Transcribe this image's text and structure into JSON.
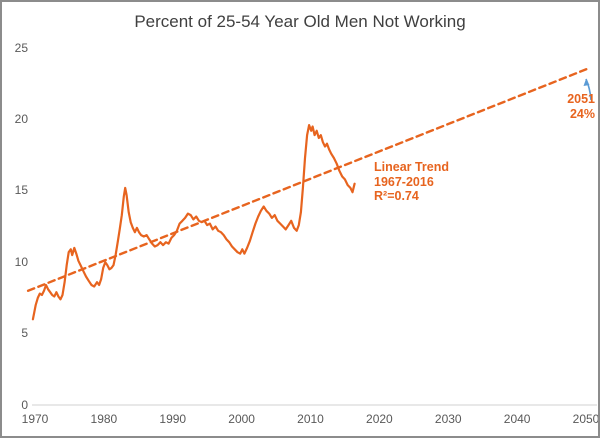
{
  "colors": {
    "accent": "#e7641f",
    "arrow": "#5b9bd5",
    "title_text": "#404040",
    "axis_text": "#595959",
    "axis_line": "#d9d9d9",
    "border": "#8c8c8c"
  },
  "chart_data": {
    "type": "line",
    "title": "Percent of 25-54 Year Old Men Not Working",
    "xlabel": "",
    "ylabel": "",
    "legend": "none",
    "grid": false,
    "x_axis": {
      "ticks": [
        1970,
        1980,
        1990,
        2000,
        2010,
        2020,
        2030,
        2040,
        2050
      ],
      "range": [
        1969,
        2051
      ]
    },
    "y_axis": {
      "ticks": [
        0,
        5,
        10,
        15,
        20,
        25
      ],
      "range": [
        0,
        25
      ]
    },
    "series": [
      {
        "name": "percent-not-working",
        "label": "Percent of 25-54 year old men not working (1970-2016)",
        "style": "solid",
        "points": [
          [
            1969.7,
            6.0
          ],
          [
            1969.9,
            6.5
          ],
          [
            1970.1,
            7.0
          ],
          [
            1970.4,
            7.5
          ],
          [
            1970.7,
            7.8
          ],
          [
            1971.0,
            7.7
          ],
          [
            1971.3,
            8.0
          ],
          [
            1971.6,
            8.4
          ],
          [
            1971.9,
            8.1
          ],
          [
            1972.2,
            7.9
          ],
          [
            1972.5,
            7.7
          ],
          [
            1972.8,
            7.6
          ],
          [
            1973.1,
            7.9
          ],
          [
            1973.4,
            7.6
          ],
          [
            1973.7,
            7.4
          ],
          [
            1974.0,
            7.7
          ],
          [
            1974.3,
            8.6
          ],
          [
            1974.6,
            9.8
          ],
          [
            1974.9,
            10.7
          ],
          [
            1975.2,
            10.9
          ],
          [
            1975.4,
            10.5
          ],
          [
            1975.7,
            11.0
          ],
          [
            1976.0,
            10.6
          ],
          [
            1976.3,
            10.1
          ],
          [
            1976.6,
            9.8
          ],
          [
            1977.0,
            9.4
          ],
          [
            1977.4,
            9.0
          ],
          [
            1977.8,
            8.7
          ],
          [
            1978.2,
            8.4
          ],
          [
            1978.6,
            8.3
          ],
          [
            1979.0,
            8.6
          ],
          [
            1979.3,
            8.4
          ],
          [
            1979.6,
            8.8
          ],
          [
            1979.9,
            9.6
          ],
          [
            1980.2,
            10.0
          ],
          [
            1980.5,
            9.8
          ],
          [
            1980.8,
            9.5
          ],
          [
            1981.1,
            9.6
          ],
          [
            1981.4,
            9.8
          ],
          [
            1981.7,
            10.5
          ],
          [
            1982.0,
            11.4
          ],
          [
            1982.3,
            12.3
          ],
          [
            1982.6,
            13.3
          ],
          [
            1982.9,
            14.6
          ],
          [
            1983.1,
            15.2
          ],
          [
            1983.3,
            14.7
          ],
          [
            1983.6,
            13.5
          ],
          [
            1983.9,
            12.8
          ],
          [
            1984.2,
            12.4
          ],
          [
            1984.5,
            12.1
          ],
          [
            1984.8,
            12.4
          ],
          [
            1985.1,
            12.1
          ],
          [
            1985.4,
            11.9
          ],
          [
            1985.8,
            11.8
          ],
          [
            1986.2,
            11.9
          ],
          [
            1986.6,
            11.6
          ],
          [
            1987.0,
            11.3
          ],
          [
            1987.4,
            11.1
          ],
          [
            1987.8,
            11.2
          ],
          [
            1988.2,
            11.4
          ],
          [
            1988.6,
            11.2
          ],
          [
            1989.0,
            11.4
          ],
          [
            1989.4,
            11.3
          ],
          [
            1989.8,
            11.7
          ],
          [
            1990.2,
            11.9
          ],
          [
            1990.6,
            12.2
          ],
          [
            1991.0,
            12.7
          ],
          [
            1991.4,
            12.9
          ],
          [
            1991.8,
            13.1
          ],
          [
            1992.2,
            13.4
          ],
          [
            1992.6,
            13.3
          ],
          [
            1993.0,
            13.0
          ],
          [
            1993.4,
            13.2
          ],
          [
            1993.8,
            12.9
          ],
          [
            1994.2,
            12.8
          ],
          [
            1994.6,
            12.9
          ],
          [
            1995.0,
            12.6
          ],
          [
            1995.4,
            12.7
          ],
          [
            1995.8,
            12.3
          ],
          [
            1996.2,
            12.5
          ],
          [
            1996.6,
            12.2
          ],
          [
            1997.0,
            12.1
          ],
          [
            1997.4,
            11.9
          ],
          [
            1997.8,
            11.6
          ],
          [
            1998.2,
            11.4
          ],
          [
            1998.6,
            11.1
          ],
          [
            1999.0,
            10.9
          ],
          [
            1999.4,
            10.7
          ],
          [
            1999.8,
            10.6
          ],
          [
            2000.1,
            10.9
          ],
          [
            2000.4,
            10.6
          ],
          [
            2000.8,
            11.0
          ],
          [
            2001.2,
            11.5
          ],
          [
            2001.6,
            12.1
          ],
          [
            2002.0,
            12.7
          ],
          [
            2002.4,
            13.2
          ],
          [
            2002.8,
            13.6
          ],
          [
            2003.2,
            13.9
          ],
          [
            2003.6,
            13.6
          ],
          [
            2004.0,
            13.4
          ],
          [
            2004.4,
            13.1
          ],
          [
            2004.8,
            13.3
          ],
          [
            2005.2,
            12.9
          ],
          [
            2005.6,
            12.7
          ],
          [
            2006.0,
            12.5
          ],
          [
            2006.4,
            12.3
          ],
          [
            2006.8,
            12.6
          ],
          [
            2007.2,
            12.9
          ],
          [
            2007.6,
            12.4
          ],
          [
            2008.0,
            12.2
          ],
          [
            2008.3,
            12.6
          ],
          [
            2008.6,
            13.5
          ],
          [
            2008.9,
            15.2
          ],
          [
            2009.2,
            17.3
          ],
          [
            2009.5,
            18.9
          ],
          [
            2009.8,
            19.6
          ],
          [
            2010.1,
            19.2
          ],
          [
            2010.3,
            19.5
          ],
          [
            2010.6,
            18.9
          ],
          [
            2010.9,
            19.2
          ],
          [
            2011.2,
            18.7
          ],
          [
            2011.5,
            18.9
          ],
          [
            2011.8,
            18.4
          ],
          [
            2012.1,
            18.1
          ],
          [
            2012.4,
            18.3
          ],
          [
            2012.7,
            17.9
          ],
          [
            2013.0,
            17.6
          ],
          [
            2013.4,
            17.3
          ],
          [
            2013.8,
            16.9
          ],
          [
            2014.2,
            16.4
          ],
          [
            2014.6,
            16.0
          ],
          [
            2015.0,
            15.8
          ],
          [
            2015.4,
            15.4
          ],
          [
            2015.8,
            15.2
          ],
          [
            2016.1,
            14.9
          ],
          [
            2016.4,
            15.5
          ]
        ]
      },
      {
        "name": "linear-trend",
        "label": "Linear Trend 1967-2016",
        "style": "dashed",
        "points": [
          [
            1969.0,
            8.0
          ],
          [
            2050.5,
            23.6
          ]
        ]
      }
    ],
    "annotations": {
      "trend_label": {
        "line1": "Linear Trend",
        "line2": "1967-2016",
        "line3": "R²=0.74"
      },
      "endpoint_label": {
        "line1": "2051",
        "line2": "24%"
      }
    }
  }
}
